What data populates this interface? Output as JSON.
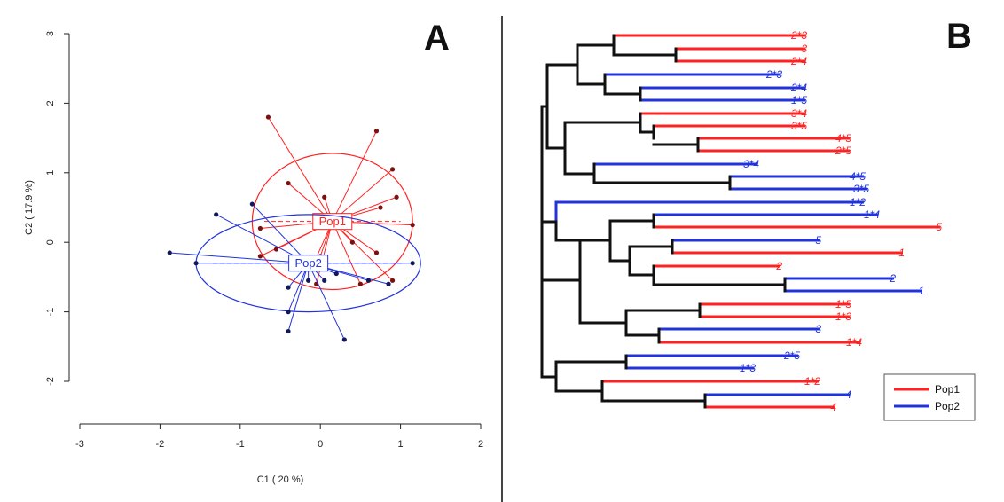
{
  "colors": {
    "pop1": "#ff2222",
    "pop2": "#2233dd",
    "tree": "#111111",
    "divider": "#444444"
  },
  "panel_a": {
    "letter": "A",
    "chart_data": {
      "type": "scatter",
      "xlabel": "C1 ( 20 %)",
      "ylabel": "C2 ( 17.9 %)",
      "xlim": [
        -3,
        2
      ],
      "ylim": [
        -2,
        3
      ],
      "x_ticks": [
        "-3",
        "-2",
        "-1",
        "0",
        "1",
        "2"
      ],
      "y_ticks": [
        "3",
        "2",
        "1",
        "0",
        "-1",
        "-2"
      ],
      "groups": [
        {
          "name": "Pop1",
          "color": "#ff2222",
          "centroid": [
            0.15,
            0.3
          ],
          "ellipse": {
            "rx": 1.0,
            "ry": 0.98
          },
          "points": [
            [
              -0.65,
              1.8
            ],
            [
              0.7,
              1.6
            ],
            [
              -0.4,
              0.85
            ],
            [
              0.9,
              1.05
            ],
            [
              0.05,
              0.65
            ],
            [
              0.95,
              0.65
            ],
            [
              0.75,
              0.5
            ],
            [
              1.15,
              0.25
            ],
            [
              -0.75,
              0.2
            ],
            [
              -0.75,
              -0.2
            ],
            [
              -0.55,
              -0.1
            ],
            [
              0.4,
              0.0
            ],
            [
              0.7,
              -0.15
            ],
            [
              0.5,
              -0.6
            ],
            [
              0.9,
              -0.55
            ],
            [
              -0.1,
              -0.35
            ],
            [
              -0.05,
              -0.6
            ],
            [
              0.0,
              -0.2
            ]
          ]
        },
        {
          "name": "Pop2",
          "color": "#2233dd",
          "centroid": [
            -0.15,
            -0.3
          ],
          "ellipse": {
            "rx": 1.4,
            "ry": 0.7
          },
          "points": [
            [
              -1.88,
              -0.15
            ],
            [
              -1.55,
              -0.3
            ],
            [
              -1.3,
              0.4
            ],
            [
              -0.85,
              0.55
            ],
            [
              -0.4,
              -0.65
            ],
            [
              -0.4,
              -1.0
            ],
            [
              -0.4,
              -1.28
            ],
            [
              0.3,
              -1.4
            ],
            [
              0.2,
              -0.45
            ],
            [
              0.6,
              -0.55
            ],
            [
              0.85,
              -0.6
            ],
            [
              1.15,
              -0.3
            ],
            [
              -0.15,
              -0.55
            ],
            [
              0.05,
              -0.55
            ]
          ]
        }
      ]
    }
  },
  "panel_b": {
    "letter": "B",
    "chart_data": {
      "type": "dendrogram",
      "legend": {
        "position": "bottom-right",
        "entries": [
          {
            "name": "Pop1",
            "color": "#ff2222"
          },
          {
            "name": "Pop2",
            "color": "#2233dd"
          }
        ]
      },
      "leaves": [
        {
          "label": "2*3",
          "group": "Pop1"
        },
        {
          "label": "3",
          "group": "Pop1"
        },
        {
          "label": "2*4",
          "group": "Pop1"
        },
        {
          "label": "2*3",
          "group": "Pop2"
        },
        {
          "label": "2*4",
          "group": "Pop2"
        },
        {
          "label": "1*5",
          "group": "Pop2"
        },
        {
          "label": "3*4",
          "group": "Pop1"
        },
        {
          "label": "3*5",
          "group": "Pop1"
        },
        {
          "label": "4*5",
          "group": "Pop1"
        },
        {
          "label": "2*5",
          "group": "Pop1"
        },
        {
          "label": "3*4",
          "group": "Pop2"
        },
        {
          "label": "4*5",
          "group": "Pop2"
        },
        {
          "label": "3*5",
          "group": "Pop2"
        },
        {
          "label": "1*2",
          "group": "Pop2"
        },
        {
          "label": "1*4",
          "group": "Pop2"
        },
        {
          "label": "5",
          "group": "Pop1"
        },
        {
          "label": "5",
          "group": "Pop2"
        },
        {
          "label": "1",
          "group": "Pop1"
        },
        {
          "label": "2",
          "group": "Pop1"
        },
        {
          "label": "2",
          "group": "Pop2"
        },
        {
          "label": "1",
          "group": "Pop2"
        },
        {
          "label": "1*5",
          "group": "Pop1"
        },
        {
          "label": "1*3",
          "group": "Pop1"
        },
        {
          "label": "3",
          "group": "Pop2"
        },
        {
          "label": "1*4",
          "group": "Pop1"
        },
        {
          "label": "2*5",
          "group": "Pop2"
        },
        {
          "label": "1*3",
          "group": "Pop2"
        },
        {
          "label": "1*2",
          "group": "Pop1"
        },
        {
          "label": "4",
          "group": "Pop2"
        },
        {
          "label": "4",
          "group": "Pop1"
        }
      ]
    }
  }
}
